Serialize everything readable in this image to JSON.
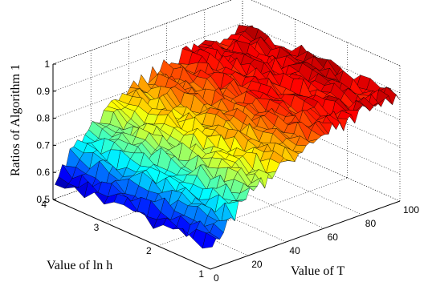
{
  "chart_data": {
    "type": "surface",
    "title": "",
    "zlabel": "Ratios of Algorithm 1",
    "xlabel": "Value of T",
    "ylabel": "Value of ln h",
    "xlim": [
      0,
      100
    ],
    "ylim": [
      1,
      4
    ],
    "zlim": [
      0.5,
      1
    ],
    "x_ticks": [
      "0",
      "20",
      "40",
      "60",
      "80",
      "100"
    ],
    "y_ticks": [
      "1",
      "2",
      "3",
      "4"
    ],
    "z_ticks": [
      "0.5",
      "0.6",
      "0.7",
      "0.8",
      "0.9",
      "1"
    ],
    "grid": true,
    "colormap": "jet",
    "surface_model": {
      "description_points": "ratio rises from about 0.57 at T=1 to about 0.89 at T=100; roughly independent of ln h; noisy amplitude about 0.03",
      "x_range": [
        1,
        100
      ],
      "y_range": [
        1,
        4
      ],
      "z_at_x": [
        [
          1,
          0.57
        ],
        [
          10,
          0.65
        ],
        [
          20,
          0.72
        ],
        [
          40,
          0.8
        ],
        [
          60,
          0.85
        ],
        [
          80,
          0.875
        ],
        [
          100,
          0.89
        ]
      ],
      "noise_amplitude": 0.03,
      "grid_nx": 50,
      "grid_ny": 16
    }
  }
}
